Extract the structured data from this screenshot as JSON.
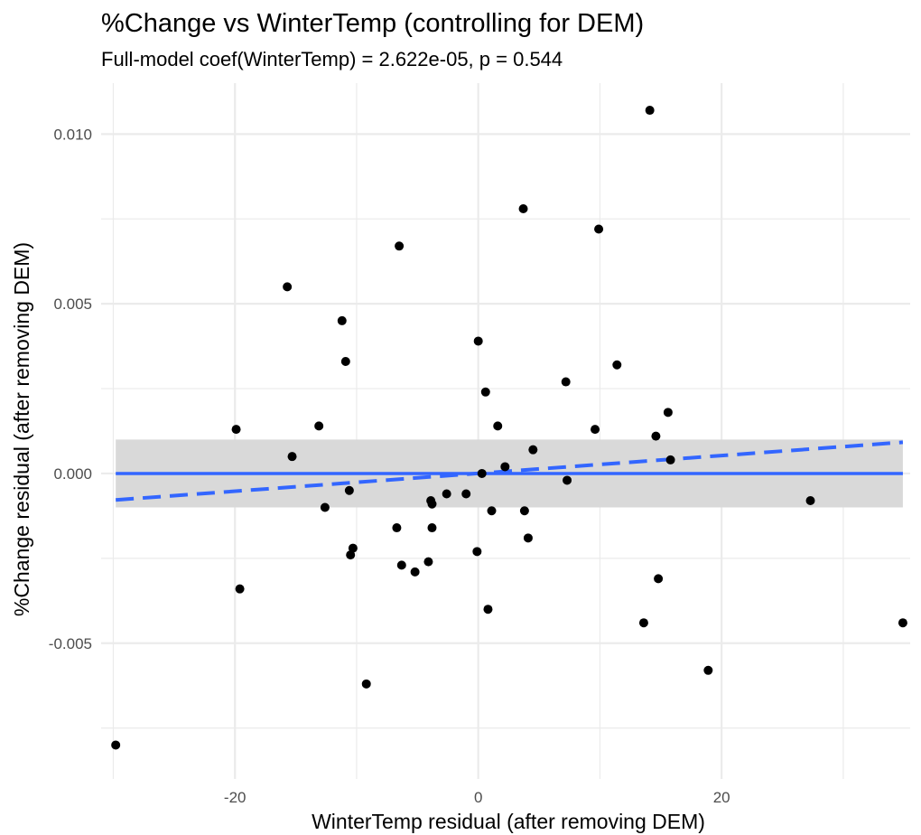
{
  "chart_data": {
    "type": "scatter",
    "title": "%Change vs WinterTemp (controlling for DEM)",
    "subtitle": "Full-model coef(WinterTemp) = 2.622e-05, p = 0.544",
    "xlabel": "WinterTemp residual (after removing DEM)",
    "ylabel": "%Change residual (after removing DEM)",
    "xlim": [
      -31,
      35.5
    ],
    "ylim": [
      -0.009,
      0.0115
    ],
    "x_ticks": [
      -20,
      0,
      20
    ],
    "x_tick_labels": [
      "-20",
      "0",
      "20"
    ],
    "y_ticks": [
      -0.005,
      0.0,
      0.005,
      0.01
    ],
    "y_tick_labels": [
      "-0.005",
      "0.000",
      "0.005",
      "0.010"
    ],
    "grid": true,
    "points": [
      [
        -29.8,
        -0.008
      ],
      [
        -19.9,
        0.0013
      ],
      [
        -19.6,
        -0.0034
      ],
      [
        -15.7,
        0.0055
      ],
      [
        -15.3,
        0.0005
      ],
      [
        -13.1,
        0.0014
      ],
      [
        -12.6,
        -0.001
      ],
      [
        -11.2,
        0.0045
      ],
      [
        -10.9,
        0.0033
      ],
      [
        -10.6,
        -0.0005
      ],
      [
        -10.5,
        -0.0024
      ],
      [
        -10.3,
        -0.0022
      ],
      [
        -9.2,
        -0.0062
      ],
      [
        -6.7,
        -0.0016
      ],
      [
        -6.5,
        0.0067
      ],
      [
        -6.3,
        -0.0027
      ],
      [
        -5.2,
        -0.0029
      ],
      [
        -4.1,
        -0.0026
      ],
      [
        -3.9,
        -0.0008
      ],
      [
        -3.8,
        -0.0009
      ],
      [
        -3.8,
        -0.0016
      ],
      [
        -2.6,
        -0.0006
      ],
      [
        -1.0,
        -0.0006
      ],
      [
        -0.1,
        -0.0023
      ],
      [
        0.0,
        0.0039
      ],
      [
        0.3,
        0.0
      ],
      [
        0.6,
        0.0024
      ],
      [
        0.8,
        -0.004
      ],
      [
        1.1,
        -0.0011
      ],
      [
        1.6,
        0.0014
      ],
      [
        2.2,
        0.0002
      ],
      [
        3.7,
        0.0078
      ],
      [
        3.8,
        -0.0011
      ],
      [
        4.1,
        -0.0019
      ],
      [
        4.5,
        0.0007
      ],
      [
        7.2,
        0.0027
      ],
      [
        7.3,
        -0.0002
      ],
      [
        9.6,
        0.0013
      ],
      [
        9.9,
        0.0072
      ],
      [
        11.4,
        0.0032
      ],
      [
        13.6,
        -0.0044
      ],
      [
        14.1,
        0.0107
      ],
      [
        14.6,
        0.0011
      ],
      [
        14.8,
        -0.0031
      ],
      [
        15.6,
        0.0018
      ],
      [
        15.8,
        0.0004
      ],
      [
        18.9,
        -0.0058
      ],
      [
        27.3,
        -0.0008
      ],
      [
        34.9,
        -0.0044
      ]
    ],
    "fit_line": {
      "x": [
        -29.8,
        34.9
      ],
      "y": [
        0.0,
        0.0
      ],
      "color": "#3366ff",
      "style": "solid"
    },
    "confidence_band": {
      "x": [
        -29.8,
        34.9
      ],
      "y_low": [
        -0.001,
        -0.001
      ],
      "y_high": [
        0.001,
        0.001
      ],
      "color": "#d9d9d9"
    },
    "partial_line": {
      "x": [
        -29.8,
        34.9
      ],
      "y": [
        -0.00078,
        0.00092
      ],
      "color": "#3366ff",
      "style": "dashed"
    },
    "point_color": "#000000",
    "panel_background": "#ffffff",
    "grid_color": "#ebebeb"
  }
}
